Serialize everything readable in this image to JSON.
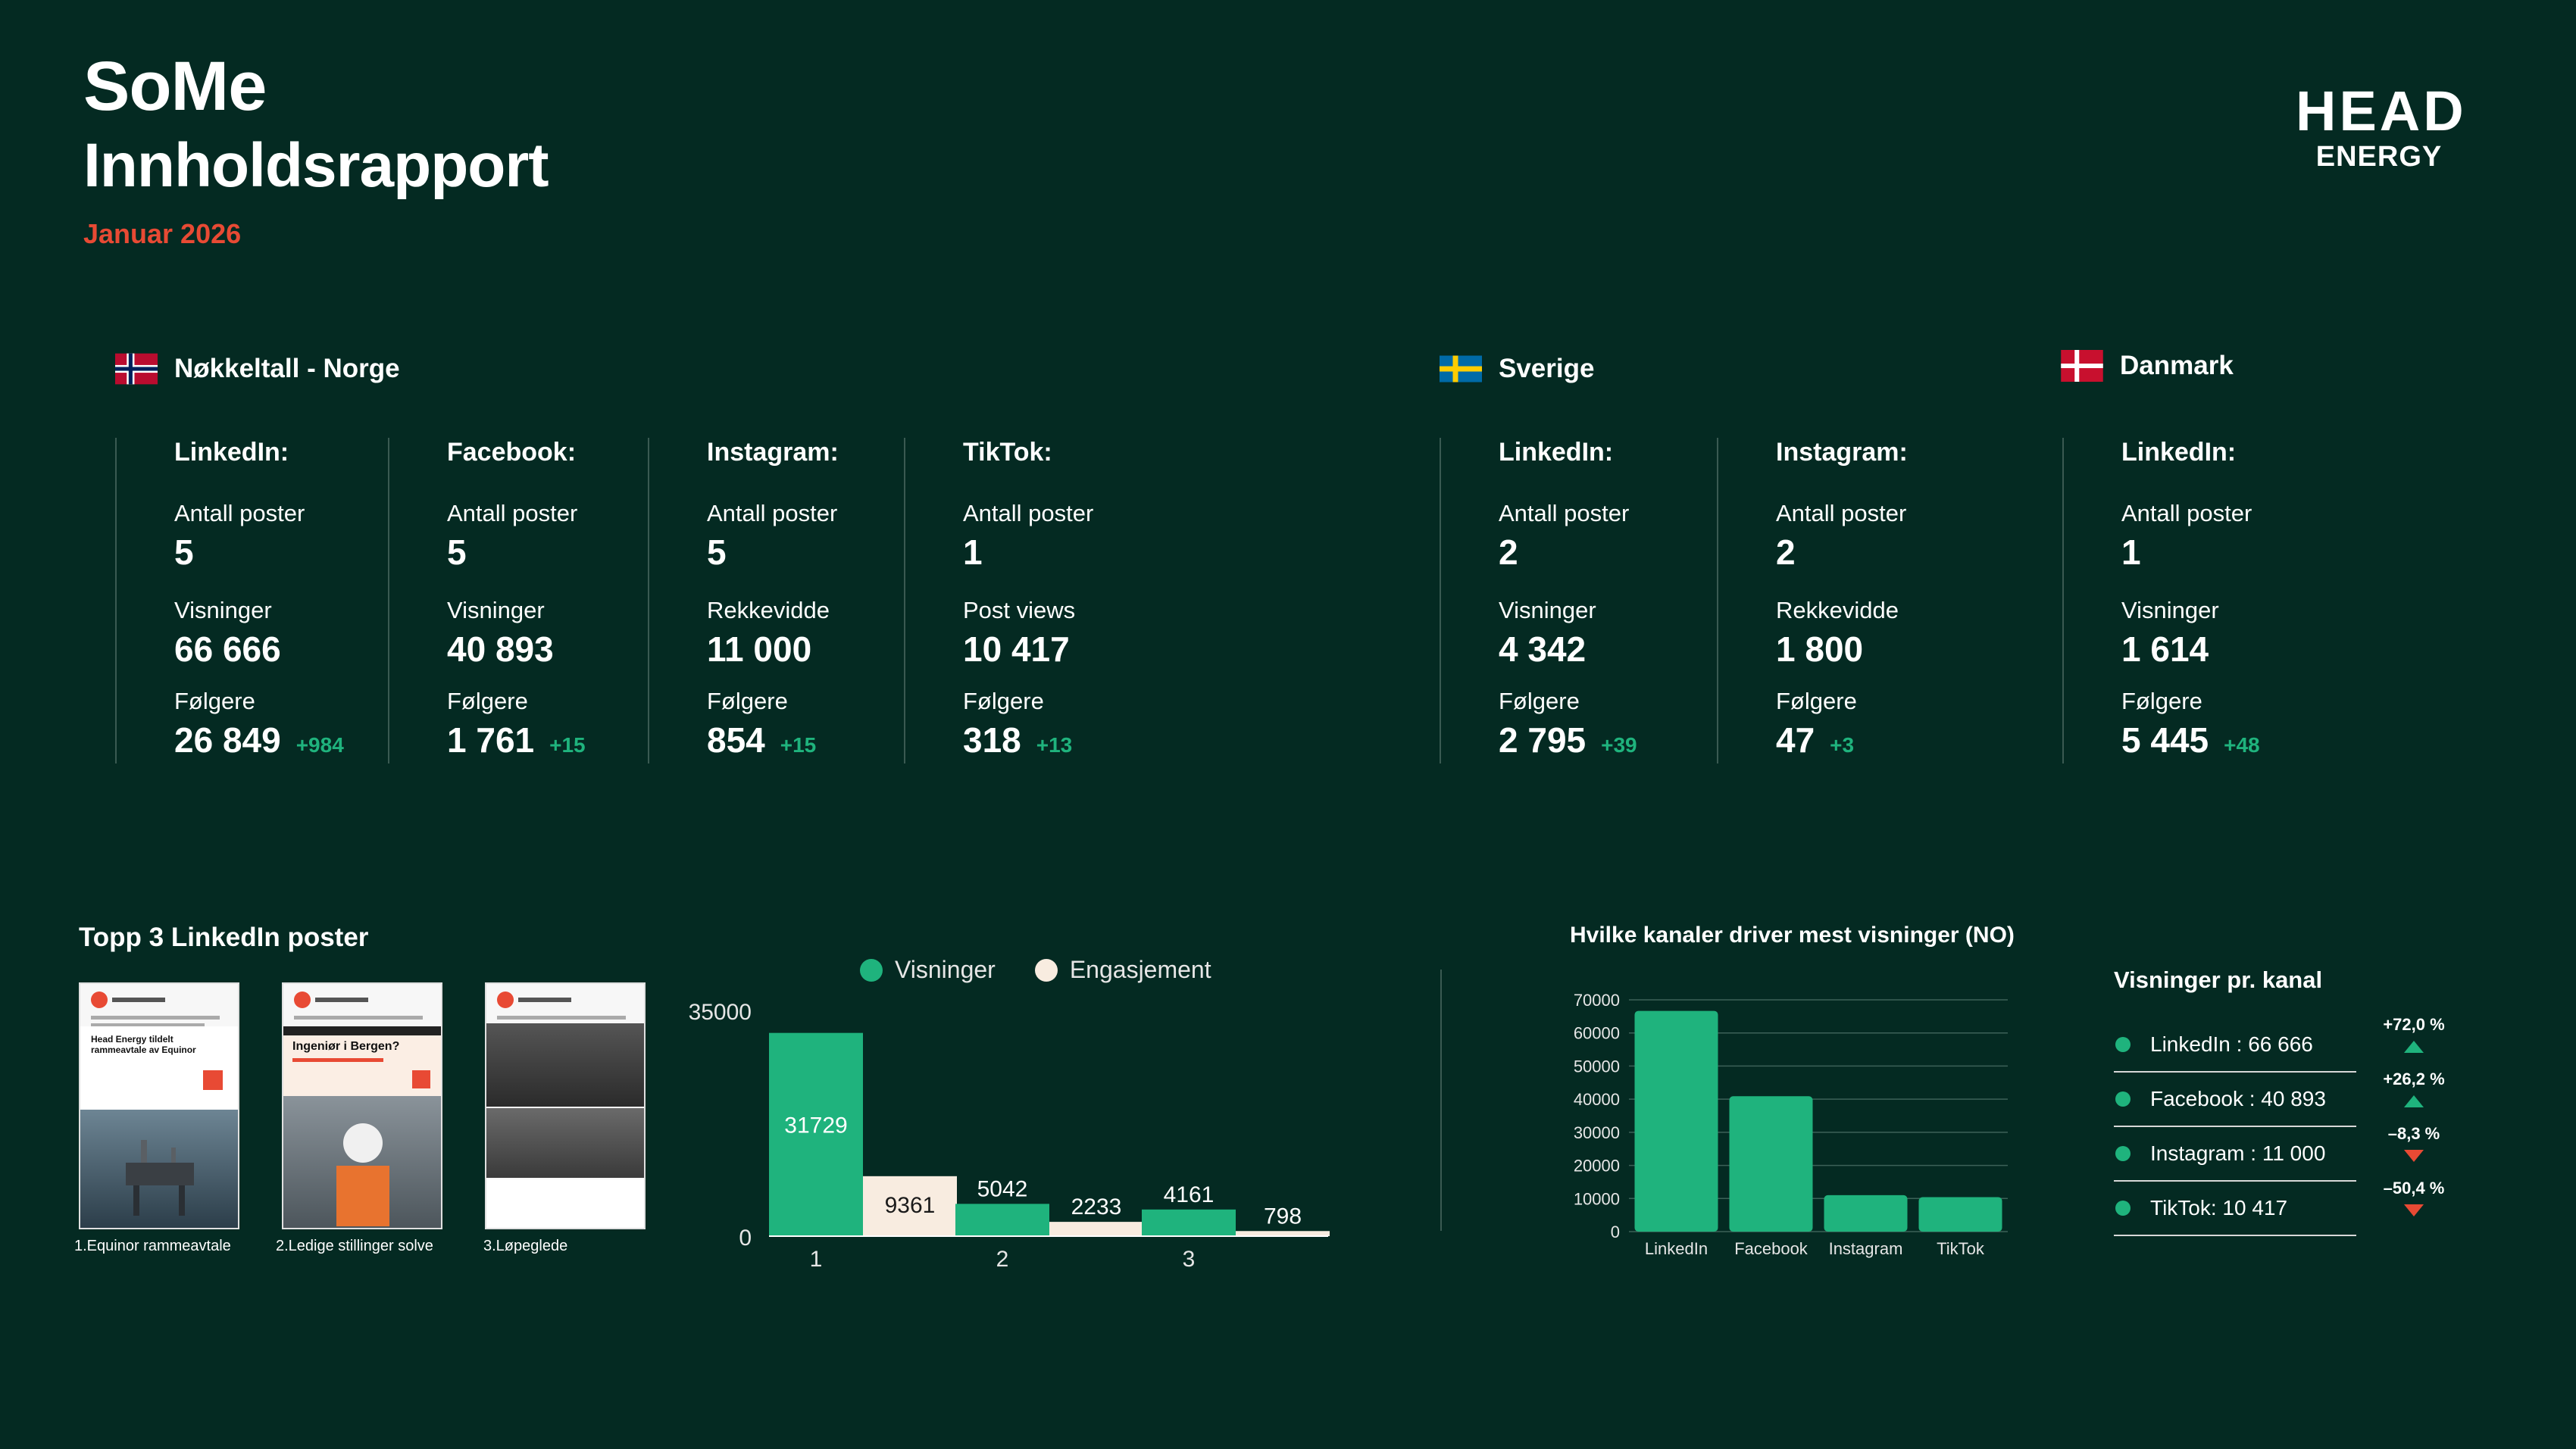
{
  "header": {
    "title_line1": "SoMe",
    "title_line2": "Innholdsrapport",
    "period": "Januar 2026",
    "logo_line1": "HEAD",
    "logo_line2": "ENERGY"
  },
  "colors": {
    "background": "#042a22",
    "accent_green": "#1fb37d",
    "accent_red": "#e84a34",
    "cream": "#f8ece0"
  },
  "norway": {
    "title": "Nøkkeltall - Norge",
    "columns": [
      {
        "channel": "LinkedIn:",
        "l1": "Antall poster",
        "v1": "5",
        "l2": "Visninger",
        "v2": "66 666",
        "l3": "Følgere",
        "v3": "26 849",
        "delta": "+984"
      },
      {
        "channel": "Facebook:",
        "l1": "Antall poster",
        "v1": "5",
        "l2": "Visninger",
        "v2": "40 893",
        "l3": "Følgere",
        "v3": "1 761",
        "delta": "+15"
      },
      {
        "channel": "Instagram:",
        "l1": "Antall poster",
        "v1": "5",
        "l2": "Rekkevidde",
        "v2": "11 000",
        "l3": "Følgere",
        "v3": "854",
        "delta": "+15"
      },
      {
        "channel": "TikTok:",
        "l1": "Antall poster",
        "v1": "1",
        "l2": "Post views",
        "v2": "10 417",
        "l3": "Følgere",
        "v3": "318",
        "delta": "+13"
      }
    ]
  },
  "sweden": {
    "title": "Sverige",
    "columns": [
      {
        "channel": "LinkedIn:",
        "l1": "Antall poster",
        "v1": "2",
        "l2": "Visninger",
        "v2": "4 342",
        "l3": "Følgere",
        "v3": "2 795",
        "delta": "+39"
      },
      {
        "channel": "Instagram:",
        "l1": "Antall poster",
        "v1": "2",
        "l2": "Rekkevidde",
        "v2": "1 800",
        "l3": "Følgere",
        "v3": "47",
        "delta": "+3"
      }
    ]
  },
  "denmark": {
    "title": "Danmark",
    "columns": [
      {
        "channel": "LinkedIn:",
        "l1": "Antall poster",
        "v1": "1",
        "l2": "Visninger",
        "v2": "1 614",
        "l3": "Følgere",
        "v3": "5 445",
        "delta": "+48"
      }
    ]
  },
  "top3": {
    "title": "Topp 3 LinkedIn poster",
    "posts": [
      {
        "caption": "1.Equinor rammeavtale",
        "headline": "Head Energy tildelt rammeavtale av Equinor"
      },
      {
        "caption": "2.Ledige stillinger solve",
        "headline": "Ingeniør i Bergen?"
      },
      {
        "caption": "3.Løpeglede",
        "headline": ""
      }
    ]
  },
  "chart_data": [
    {
      "type": "bar",
      "categories": [
        "1",
        "2",
        "3"
      ],
      "series": [
        {
          "name": "Visninger",
          "values": [
            31729,
            5042,
            4161
          ],
          "color": "#1fb37d"
        },
        {
          "name": "Engasjement",
          "values": [
            9361,
            2233,
            798
          ],
          "color": "#f8ece0"
        }
      ],
      "ylim": [
        0,
        35000
      ],
      "yticks": [
        "0",
        "35000"
      ],
      "legend": "top",
      "grid": false,
      "data_labels": true
    },
    {
      "type": "bar",
      "title": "Hvilke kanaler driver mest visninger (NO)",
      "categories": [
        "LinkedIn",
        "Facebook",
        "Instagram",
        "TikTok"
      ],
      "values": [
        66666,
        40893,
        11000,
        10417
      ],
      "ylim": [
        0,
        70000
      ],
      "yticks": [
        "0",
        "10000",
        "20000",
        "30000",
        "40000",
        "50000",
        "60000",
        "70000"
      ],
      "grid": true,
      "color": "#1fb37d"
    }
  ],
  "kanal": {
    "title": "Visninger pr. kanal",
    "rows": [
      {
        "label": "LinkedIn : 66 666",
        "change": "+72,0 %",
        "dir": "up"
      },
      {
        "label": "Facebook : 40 893",
        "change": "+26,2 %",
        "dir": "up"
      },
      {
        "label": "Instagram : 11 000",
        "change": "–8,3 %",
        "dir": "down"
      },
      {
        "label": "TikTok: 10 417",
        "change": "–50,4 %",
        "dir": "down"
      }
    ]
  }
}
